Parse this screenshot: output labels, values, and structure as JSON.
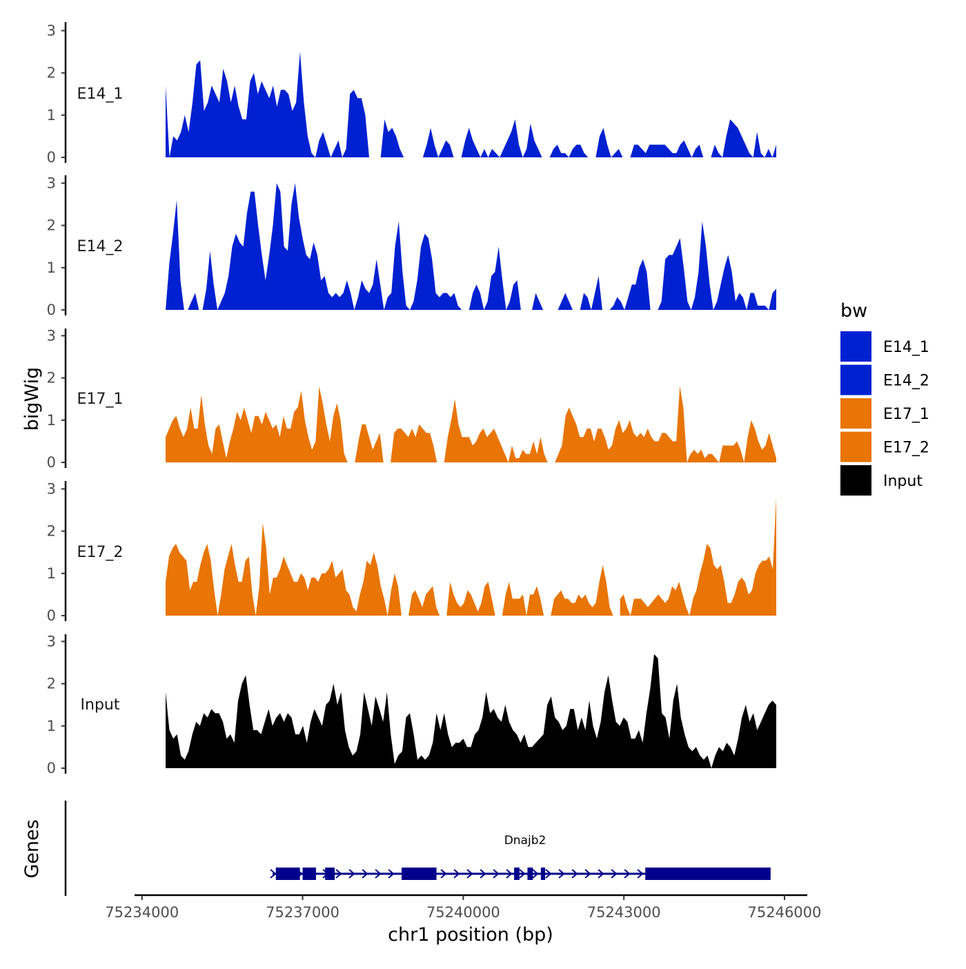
{
  "chart_data": {
    "type": "area",
    "y_title": "bigWig",
    "genes_title": "Genes",
    "x_title": "chr1 position (bp)",
    "xlim": [
      75233900,
      75246400
    ],
    "ylim": [
      0,
      3.2
    ],
    "y_ticks": [
      "0",
      "1",
      "2",
      "3"
    ],
    "x_ticks": [
      {
        "value": 75234000,
        "label": "75234000"
      },
      {
        "value": 75237000,
        "label": "75237000"
      },
      {
        "value": 75240000,
        "label": "75240000"
      },
      {
        "value": 75243000,
        "label": "75243000"
      },
      {
        "value": 75246000,
        "label": "75246000"
      }
    ],
    "legend": {
      "title": "bw",
      "items": [
        {
          "label": "E14_1",
          "color": "#0021d1"
        },
        {
          "label": "E14_2",
          "color": "#0021d1"
        },
        {
          "label": "E17_1",
          "color": "#e87505"
        },
        {
          "label": "E17_2",
          "color": "#e87505"
        },
        {
          "label": "Input",
          "color": "#000000"
        }
      ]
    },
    "series": [
      {
        "name": "E14_1",
        "color": "#0021d1",
        "values": [
          1.7,
          0.0,
          0.5,
          0.4,
          0.6,
          1.0,
          0.6,
          1.3,
          2.2,
          2.3,
          1.1,
          1.3,
          1.7,
          1.5,
          1.3,
          2.1,
          1.8,
          1.3,
          1.7,
          1.2,
          0.9,
          0.9,
          1.8,
          2.0,
          1.5,
          1.8,
          1.6,
          1.4,
          1.7,
          1.2,
          1.6,
          1.6,
          1.5,
          1.1,
          1.3,
          2.5,
          1.3,
          0.5,
          0.1,
          0.0,
          0.4,
          0.6,
          0.3,
          0.0,
          0.2,
          0.4,
          0.0,
          0.2,
          1.5,
          1.6,
          1.4,
          1.4,
          1.0,
          0.0,
          null,
          null,
          0.0,
          0.9,
          0.6,
          0.7,
          0.5,
          0.2,
          0.0,
          null,
          null,
          null,
          null,
          0.0,
          0.3,
          0.7,
          0.3,
          0.0,
          0.2,
          0.4,
          0.3,
          0.0,
          null,
          0.0,
          0.4,
          0.7,
          0.4,
          0.2,
          0.0,
          0.2,
          0.0,
          0.2,
          0.1,
          0.0,
          0.2,
          0.4,
          0.6,
          0.9,
          0.3,
          0.0,
          0.2,
          0.8,
          0.4,
          0.2,
          0.0,
          null,
          0.0,
          0.2,
          0.3,
          0.1,
          0.1,
          0.0,
          0.2,
          0.3,
          0.3,
          0.1,
          0.0,
          null,
          0.0,
          0.5,
          0.7,
          0.3,
          0.0,
          0.1,
          0.2,
          0.0,
          null,
          0.0,
          0.3,
          0.3,
          0.2,
          0.1,
          0.3,
          0.3,
          0.3,
          0.3,
          0.3,
          0.2,
          0.1,
          0.1,
          0.3,
          0.4,
          0.2,
          0.0,
          0.2,
          0.3,
          0.0,
          null,
          0.0,
          0.3,
          0.1,
          0.0,
          0.5,
          0.9,
          0.8,
          0.7,
          0.5,
          0.3,
          0.1,
          0.0,
          0.6,
          0.1,
          0.0,
          0.2,
          0.0,
          0.3
        ]
      },
      {
        "name": "E14_2",
        "color": "#0021d1",
        "values": [
          0.0,
          1.1,
          1.8,
          2.6,
          0.7,
          0.0,
          0.0,
          0.2,
          0.4,
          0.0,
          0.0,
          0.5,
          1.4,
          0.6,
          0.0,
          0.2,
          0.4,
          0.8,
          1.5,
          1.8,
          1.6,
          1.5,
          2.3,
          2.8,
          2.8,
          2.0,
          1.3,
          0.7,
          1.3,
          2.0,
          3.0,
          2.8,
          1.5,
          1.4,
          2.5,
          3.0,
          2.2,
          1.7,
          1.3,
          1.2,
          1.6,
          1.3,
          0.7,
          0.8,
          0.4,
          0.3,
          0.4,
          0.3,
          0.4,
          0.7,
          0.4,
          0.0,
          0.3,
          0.7,
          0.5,
          0.4,
          0.6,
          1.2,
          0.6,
          0.0,
          0.3,
          0.4,
          1.5,
          2.1,
          0.9,
          0.1,
          0.0,
          0.2,
          0.7,
          1.5,
          1.8,
          1.7,
          1.2,
          0.4,
          0.3,
          0.4,
          0.4,
          0.3,
          0.4,
          0.1,
          0.0,
          null,
          0.0,
          0.4,
          0.6,
          0.4,
          0.0,
          0.2,
          0.8,
          0.9,
          1.5,
          0.7,
          0.0,
          0.2,
          0.6,
          0.7,
          0.0,
          null,
          0.0,
          0.0,
          0.4,
          0.2,
          0.0,
          null,
          null,
          null,
          0.0,
          0.2,
          0.4,
          0.2,
          0.0,
          null,
          0.0,
          0.4,
          0.3,
          0.0,
          0.4,
          0.8,
          0.0,
          null,
          0.0,
          0.1,
          0.3,
          0.2,
          0.0,
          0.3,
          0.6,
          0.6,
          1.0,
          1.2,
          0.9,
          0.0,
          null,
          0.0,
          0.2,
          1.2,
          1.3,
          1.3,
          1.5,
          1.7,
          1.0,
          0.2,
          0.0,
          0.3,
          0.9,
          2.1,
          1.5,
          0.6,
          0.0,
          0.2,
          0.6,
          1.0,
          1.3,
          0.9,
          0.2,
          0.4,
          0.3,
          0.0,
          0.4,
          0.4,
          0.1,
          0.1,
          0.1,
          0.0,
          0.4,
          0.5
        ]
      },
      {
        "name": "E17_1",
        "color": "#e87505",
        "values": [
          0.6,
          0.8,
          1.0,
          1.1,
          0.8,
          0.6,
          0.8,
          1.3,
          0.8,
          0.8,
          1.6,
          0.9,
          0.4,
          0.2,
          0.8,
          0.9,
          0.5,
          0.1,
          0.5,
          0.8,
          1.2,
          1.0,
          1.3,
          1.0,
          0.7,
          1.1,
          1.1,
          0.9,
          1.2,
          1.0,
          0.8,
          0.9,
          0.6,
          1.1,
          0.8,
          0.8,
          1.2,
          1.3,
          1.7,
          1.0,
          0.6,
          0.3,
          0.5,
          1.8,
          1.4,
          0.9,
          0.5,
          1.1,
          1.4,
          1.0,
          0.2,
          0.0,
          null,
          0.0,
          0.5,
          0.9,
          0.9,
          0.6,
          0.3,
          0.5,
          0.7,
          0.0,
          null,
          0.0,
          0.7,
          0.8,
          0.8,
          0.7,
          0.6,
          0.8,
          0.6,
          0.9,
          0.8,
          0.7,
          0.7,
          0.4,
          0.0,
          null,
          0.0,
          0.6,
          1.0,
          1.5,
          0.9,
          0.6,
          0.6,
          0.6,
          0.4,
          0.5,
          0.7,
          0.8,
          0.6,
          0.7,
          0.8,
          0.6,
          0.4,
          0.2,
          0.0,
          0.4,
          0.1,
          0.1,
          0.3,
          0.2,
          0.2,
          0.5,
          0.2,
          0.6,
          0.2,
          0.0,
          null,
          0.0,
          0.2,
          0.4,
          1.1,
          1.3,
          1.1,
          0.9,
          0.6,
          0.6,
          0.8,
          0.8,
          0.5,
          0.8,
          0.8,
          0.6,
          0.3,
          0.4,
          0.8,
          1.0,
          0.7,
          0.8,
          1.0,
          0.7,
          0.6,
          0.7,
          0.6,
          0.8,
          0.6,
          0.5,
          0.5,
          0.7,
          0.7,
          0.6,
          0.5,
          0.5,
          1.8,
          1.3,
          0.0,
          0.2,
          0.3,
          0.2,
          0.3,
          0.1,
          0.2,
          0.2,
          0.1,
          0.0,
          0.4,
          0.4,
          0.4,
          0.4,
          0.5,
          0.3,
          0.0,
          0.6,
          1.0,
          0.8,
          0.5,
          0.3,
          0.4,
          0.7,
          0.4,
          0.1
        ]
      },
      {
        "name": "E17_2",
        "color": "#e87505",
        "values": [
          0.8,
          1.4,
          1.6,
          1.7,
          1.5,
          1.4,
          1.3,
          0.6,
          0.8,
          0.8,
          1.2,
          1.5,
          1.7,
          1.3,
          0.6,
          0.0,
          0.5,
          1.1,
          1.4,
          1.7,
          1.2,
          0.8,
          0.8,
          1.3,
          1.4,
          0.5,
          0.0,
          0.7,
          2.2,
          1.6,
          0.5,
          0.9,
          0.9,
          1.1,
          1.4,
          1.2,
          1.0,
          0.8,
          0.8,
          1.0,
          0.9,
          0.6,
          0.9,
          0.9,
          0.8,
          1.0,
          1.0,
          1.1,
          1.3,
          0.9,
          1.0,
          1.1,
          0.6,
          0.5,
          0.2,
          0.1,
          0.5,
          0.8,
          1.3,
          1.2,
          1.5,
          1.2,
          0.7,
          0.4,
          0.0,
          0.6,
          1.0,
          0.7,
          0.0,
          null,
          0.0,
          0.5,
          0.6,
          0.4,
          0.2,
          0.5,
          0.6,
          0.7,
          0.2,
          0.0,
          null,
          0.0,
          0.8,
          0.5,
          0.3,
          0.2,
          0.3,
          0.6,
          0.5,
          0.3,
          0.1,
          0.3,
          0.7,
          0.8,
          0.4,
          0.0,
          null,
          0.0,
          0.5,
          0.8,
          0.4,
          0.4,
          0.4,
          0.5,
          0.0,
          0.5,
          0.5,
          0.7,
          0.4,
          0.0,
          null,
          0.0,
          0.4,
          0.5,
          0.6,
          0.4,
          0.4,
          0.3,
          0.3,
          0.5,
          0.4,
          0.5,
          0.3,
          0.2,
          0.3,
          0.8,
          1.2,
          0.8,
          0.2,
          0.0,
          null,
          0.4,
          0.5,
          0.2,
          0.0,
          0.4,
          0.4,
          0.4,
          0.3,
          0.2,
          0.3,
          0.4,
          0.5,
          0.4,
          0.3,
          0.4,
          0.7,
          0.6,
          0.8,
          0.5,
          0.2,
          0.0,
          0.4,
          0.6,
          1.0,
          1.3,
          1.7,
          1.6,
          1.2,
          1.1,
          1.2,
          0.8,
          0.3,
          0.3,
          0.5,
          0.8,
          0.9,
          0.8,
          0.5,
          0.6,
          1.0,
          1.2,
          1.3,
          1.3,
          1.4,
          1.1,
          2.8
        ]
      },
      {
        "name": "Input",
        "color": "#000000",
        "values": [
          1.8,
          0.9,
          0.7,
          0.8,
          0.3,
          0.2,
          0.4,
          0.8,
          1.1,
          1.0,
          1.3,
          1.2,
          1.4,
          1.3,
          1.3,
          1.1,
          0.7,
          0.8,
          0.6,
          1.6,
          2.0,
          2.2,
          1.5,
          0.9,
          0.9,
          0.8,
          1.1,
          1.4,
          1.0,
          1.2,
          1.3,
          1.1,
          1.3,
          1.2,
          0.8,
          0.8,
          1.0,
          0.6,
          1.1,
          1.4,
          1.2,
          1.0,
          1.5,
          1.6,
          2.0,
          1.5,
          1.8,
          0.9,
          0.5,
          0.3,
          0.4,
          0.8,
          1.8,
          1.4,
          1.0,
          1.7,
          1.4,
          1.1,
          1.8,
          0.8,
          0.1,
          0.3,
          0.4,
          1.2,
          1.3,
          0.8,
          0.2,
          0.3,
          0.2,
          0.3,
          0.6,
          1.3,
          0.9,
          1.3,
          0.8,
          0.5,
          0.6,
          0.6,
          0.7,
          0.5,
          0.5,
          0.8,
          0.9,
          1.2,
          1.8,
          1.3,
          1.4,
          1.2,
          1.1,
          1.5,
          1.1,
          0.9,
          0.8,
          0.6,
          0.8,
          0.5,
          0.5,
          0.6,
          0.7,
          0.8,
          1.5,
          1.7,
          1.2,
          1.1,
          0.9,
          1.0,
          1.4,
          1.4,
          0.9,
          1.2,
          0.9,
          1.6,
          1.0,
          0.7,
          1.1,
          1.8,
          2.2,
          1.6,
          1.1,
          1.0,
          1.2,
          1.1,
          0.7,
          0.7,
          0.9,
          0.6,
          1.3,
          1.9,
          2.7,
          2.6,
          1.3,
          1.2,
          0.7,
          1.6,
          2.0,
          1.2,
          0.8,
          0.5,
          0.4,
          0.5,
          0.3,
          0.2,
          0.3,
          0.0,
          0.3,
          0.5,
          0.4,
          0.6,
          0.5,
          0.3,
          0.7,
          1.2,
          1.5,
          1.1,
          1.3,
          0.9,
          1.1,
          1.3,
          1.5,
          1.6,
          1.5
        ]
      }
    ],
    "gene": {
      "name": "Dnajb2",
      "start": 75236440,
      "end": 75245740,
      "exons": [
        [
          75236500,
          75236950
        ],
        [
          75237000,
          75237250
        ],
        [
          75237420,
          75237600
        ],
        [
          75238850,
          75239500
        ],
        [
          75240950,
          75241050
        ],
        [
          75241200,
          75241300
        ],
        [
          75241450,
          75241530
        ],
        [
          75243400,
          75245740
        ]
      ]
    }
  }
}
